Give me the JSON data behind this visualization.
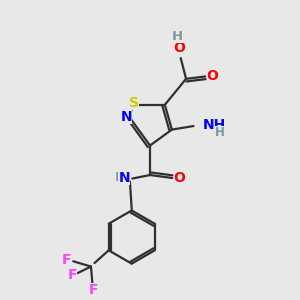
{
  "bg_color": "#e8e8e8",
  "colors": {
    "C": "#000000",
    "H": "#7a9a9a",
    "N": "#0000ff",
    "O": "#ff0000",
    "S": "#cccc00",
    "F": "#ff44ff"
  },
  "bond_color": "#303030",
  "lw": 1.6,
  "fs": 9.5
}
